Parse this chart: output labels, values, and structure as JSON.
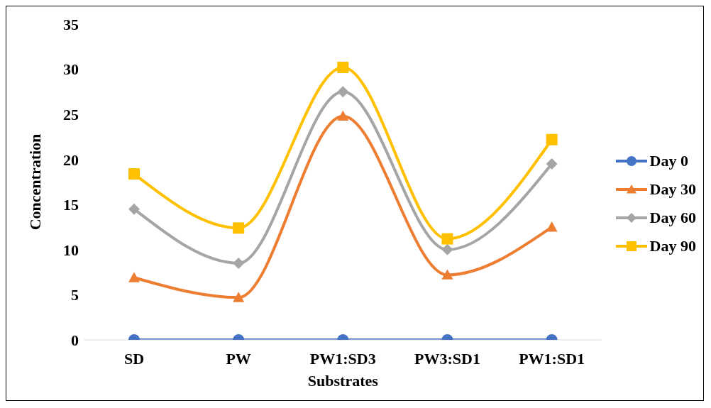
{
  "chart_data": {
    "type": "line",
    "xlabel": "Substrates",
    "ylabel": "Concentration",
    "categories": [
      "SD",
      "PW",
      "PW1:SD3",
      "PW3:SD1",
      "PW1:SD1"
    ],
    "series": [
      {
        "name": "Day 0",
        "color": "#4472c4",
        "marker": "circle",
        "values": [
          0,
          0,
          0,
          0,
          0
        ]
      },
      {
        "name": "Day 30",
        "color": "#ed7d31",
        "marker": "triangle",
        "values": [
          6.9,
          4.7,
          24.8,
          7.2,
          12.5
        ]
      },
      {
        "name": "Day 60",
        "color": "#a5a5a5",
        "marker": "diamond",
        "values": [
          14.5,
          8.5,
          27.5,
          10.0,
          19.5
        ]
      },
      {
        "name": "Day 90",
        "color": "#ffc000",
        "marker": "square",
        "values": [
          18.4,
          12.4,
          30.2,
          11.2,
          22.2
        ]
      }
    ],
    "ylim": [
      0,
      35
    ],
    "yticks": [
      0,
      5,
      10,
      15,
      20,
      25,
      30,
      35
    ],
    "grid": false,
    "legend": "right"
  }
}
